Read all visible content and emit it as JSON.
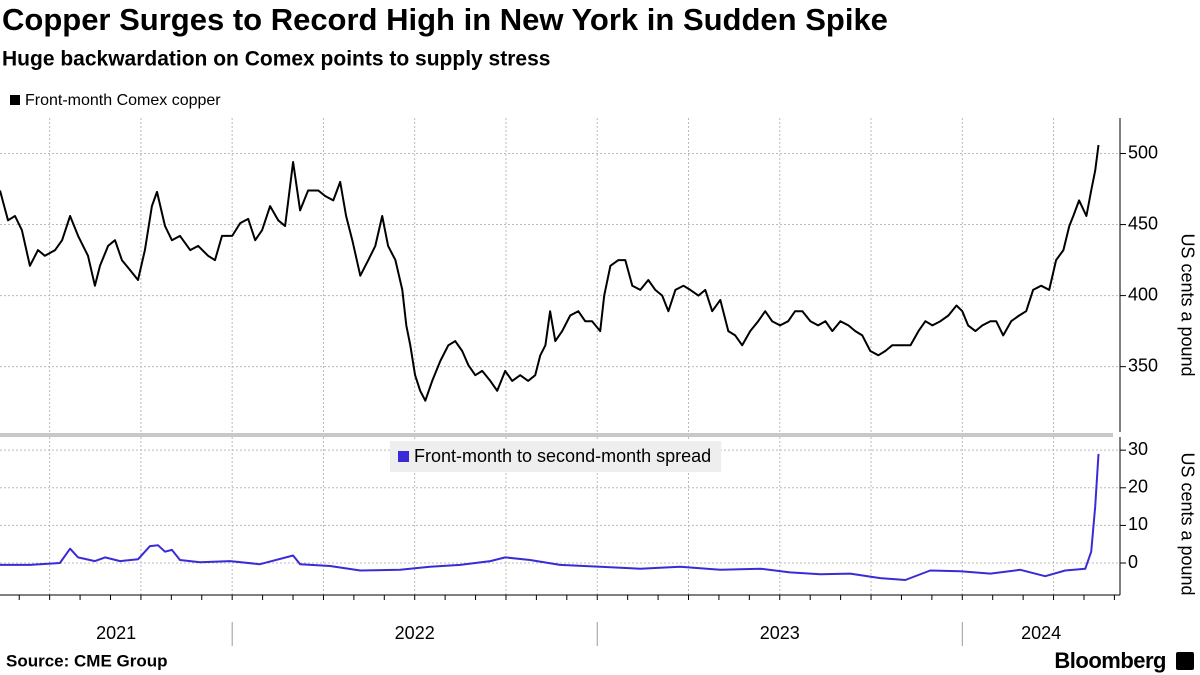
{
  "title": "Copper Surges to Record High in New York in Sudden Spike",
  "subtitle": "Huge backwardation on Comex points to supply stress",
  "source": "Source: CME Group",
  "brand": "Bloomberg",
  "chart_data": [
    {
      "type": "line",
      "x": [
        2021.364,
        2021.386,
        2021.405,
        2021.424,
        2021.446,
        2021.468,
        2021.487,
        2021.515,
        2021.534,
        2021.556,
        2021.578,
        2021.605,
        2021.624,
        2021.638,
        2021.66,
        2021.679,
        2021.698,
        2021.72,
        2021.742,
        2021.761,
        2021.78,
        2021.794,
        2021.816,
        2021.835,
        2021.857,
        2021.885,
        2021.907,
        2021.934,
        2021.953,
        2021.972,
        2022.0,
        2022.022,
        2022.044,
        2022.063,
        2022.082,
        2022.104,
        2022.126,
        2022.145,
        2022.167,
        2022.186,
        2022.208,
        2022.236,
        2022.255,
        2022.277,
        2022.296,
        2022.312,
        2022.329,
        2022.351,
        2022.373,
        2022.392,
        2022.411,
        2022.427,
        2022.447,
        2022.466,
        2022.477,
        2022.488,
        2022.501,
        2022.515,
        2022.529,
        2022.548,
        2022.57,
        2022.592,
        2022.611,
        2022.63,
        2022.647,
        2022.666,
        2022.685,
        2022.707,
        2022.726,
        2022.748,
        2022.767,
        2022.789,
        2022.811,
        2022.83,
        2022.844,
        2022.858,
        2022.871,
        2022.885,
        2022.904,
        2022.926,
        2022.948,
        2022.967,
        2022.986,
        2023.008,
        2023.019,
        2023.036,
        2023.058,
        2023.077,
        2023.096,
        2023.118,
        2023.14,
        2023.159,
        2023.178,
        2023.195,
        2023.214,
        2023.236,
        2023.255,
        2023.277,
        2023.296,
        2023.315,
        2023.337,
        2023.359,
        2023.378,
        2023.397,
        2023.419,
        2023.441,
        2023.46,
        2023.479,
        2023.501,
        2023.523,
        2023.542,
        2023.562,
        2023.584,
        2023.605,
        2023.625,
        2023.644,
        2023.666,
        2023.688,
        2023.707,
        2023.726,
        2023.748,
        2023.77,
        2023.789,
        2023.808,
        2023.83,
        2023.858,
        2023.88,
        2023.899,
        2023.918,
        2023.94,
        2023.962,
        2023.984,
        2024.0,
        2024.016,
        2024.036,
        2024.055,
        2024.077,
        2024.093,
        2024.112,
        2024.134,
        2024.156,
        2024.175,
        2024.194,
        2024.216,
        2024.238,
        2024.257,
        2024.277,
        2024.293,
        2024.304,
        2024.32,
        2024.34,
        2024.353,
        2024.364,
        2024.373
      ],
      "series": [
        {
          "name": "Front-month Comex copper",
          "color": "#000000",
          "values": [
            474,
            453,
            456,
            446,
            421,
            432,
            428,
            432,
            439,
            456,
            442,
            428,
            407,
            421,
            435,
            439,
            425,
            418,
            411,
            432,
            463,
            473,
            449,
            439,
            442,
            432,
            435,
            428,
            425,
            442,
            442,
            451,
            454,
            439,
            446,
            463,
            453,
            449,
            494,
            460,
            474,
            474,
            470,
            467,
            480,
            456,
            439,
            414,
            425,
            435,
            456,
            435,
            425,
            404,
            379,
            365,
            344,
            333,
            326,
            340,
            354,
            365,
            368,
            361,
            351,
            344,
            347,
            340,
            333,
            347,
            340,
            344,
            340,
            344,
            358,
            365,
            389,
            368,
            375,
            386,
            389,
            382,
            382,
            375,
            400,
            421,
            425,
            425,
            407,
            404,
            411,
            404,
            400,
            389,
            404,
            407,
            404,
            400,
            404,
            389,
            397,
            375,
            372,
            365,
            375,
            382,
            389,
            382,
            379,
            382,
            389,
            389,
            382,
            379,
            382,
            375,
            382,
            379,
            375,
            372,
            361,
            358,
            361,
            365,
            365,
            365,
            375,
            382,
            379,
            382,
            386,
            393,
            389,
            379,
            375,
            379,
            382,
            382,
            372,
            382,
            386,
            389,
            404,
            407,
            404,
            425,
            432,
            449,
            456,
            467,
            456,
            474,
            488,
            506
          ]
        }
      ],
      "ylim": [
        304,
        525
      ],
      "yticks": [
        350,
        400,
        450,
        500
      ],
      "ylabel": "US cents a pound",
      "xlim": [
        2021.364,
        2024.432
      ]
    },
    {
      "type": "line",
      "x": [
        2021.364,
        2021.446,
        2021.528,
        2021.556,
        2021.578,
        2021.624,
        2021.652,
        2021.693,
        2021.742,
        2021.775,
        2021.797,
        2021.816,
        2021.835,
        2021.857,
        2021.912,
        2021.994,
        2022.076,
        2022.167,
        2022.186,
        2022.268,
        2022.351,
        2022.46,
        2022.542,
        2022.625,
        2022.707,
        2022.748,
        2022.816,
        2022.898,
        2023.008,
        2023.118,
        2023.227,
        2023.337,
        2023.447,
        2023.528,
        2023.611,
        2023.693,
        2023.775,
        2023.844,
        2023.912,
        2023.994,
        2024.077,
        2024.159,
        2024.227,
        2024.282,
        2024.337,
        2024.353,
        2024.364,
        2024.373
      ],
      "series": [
        {
          "name": "Front-month to second-month spread",
          "color": "#3a2bd6",
          "values": [
            -0.5,
            -0.5,
            0,
            3.8,
            1.5,
            0.5,
            1.5,
            0.5,
            1,
            4.5,
            4.7,
            3,
            3.5,
            0.8,
            0.2,
            0.5,
            -0.3,
            2,
            -0.3,
            -0.8,
            -2,
            -1.8,
            -1,
            -0.5,
            0.5,
            1.5,
            0.8,
            -0.5,
            -1,
            -1.5,
            -1,
            -1.8,
            -1.5,
            -2.5,
            -3,
            -2.8,
            -4,
            -4.5,
            -2,
            -2.2,
            -2.8,
            -1.8,
            -3.5,
            -2,
            -1.5,
            3,
            15,
            29
          ]
        }
      ],
      "ylim": [
        -8.5,
        33.5
      ],
      "yticks": [
        0,
        10,
        20,
        30
      ],
      "ylabel": "US cents a pound",
      "xlim": [
        2021.364,
        2024.432
      ],
      "xticks": [
        2021,
        2022,
        2023,
        2024
      ]
    }
  ]
}
